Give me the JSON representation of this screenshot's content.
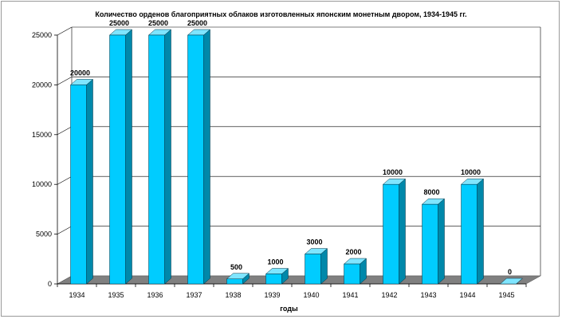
{
  "chart_data": {
    "type": "bar",
    "title": "Количество орденов благоприятных облаков изготовленных японским монетным двором, 1934-1945 гг.",
    "xlabel": "годы",
    "ylabel": "",
    "categories": [
      "1934",
      "1935",
      "1936",
      "1937",
      "1938",
      "1939",
      "1940",
      "1941",
      "1942",
      "1943",
      "1944",
      "1945"
    ],
    "values": [
      20000,
      25000,
      25000,
      25000,
      500,
      1000,
      3000,
      2000,
      10000,
      8000,
      10000,
      0
    ],
    "data_labels": [
      "20000",
      "25000",
      "25000",
      "25000",
      "500",
      "1000",
      "3000",
      "2000",
      "10000",
      "8000",
      "10000",
      "0"
    ],
    "ylim": [
      0,
      25000
    ],
    "yticks": [
      "0",
      "5000",
      "10000",
      "15000",
      "20000",
      "25000"
    ],
    "grid": true,
    "style": "3d",
    "colors": {
      "bar_front": "#00ccff",
      "bar_side": "#0088aa",
      "bar_top": "#7fe5ff",
      "floor": "#808080",
      "grid": "#000000"
    }
  }
}
